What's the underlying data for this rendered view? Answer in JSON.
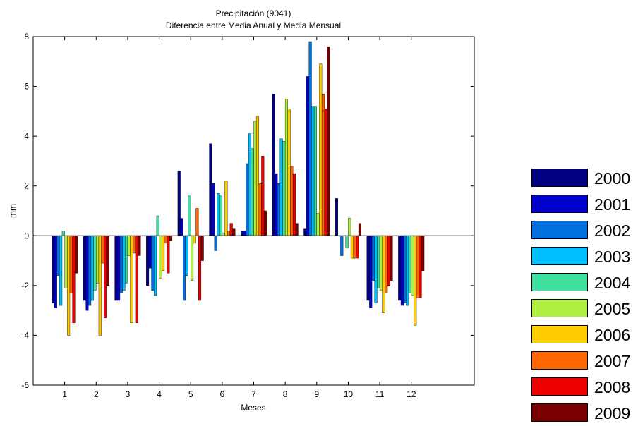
{
  "chart_data": {
    "type": "bar",
    "title": "Precipitación (9041)",
    "subtitle": "Diferencia entre Media Anual y Media Mensual",
    "xlabel": "Meses",
    "ylabel": "mm",
    "ylim": [
      -6,
      8
    ],
    "xlim": [
      0,
      14
    ],
    "yticks": [
      -6,
      -4,
      -2,
      0,
      2,
      4,
      6,
      8
    ],
    "categories": [
      "1",
      "2",
      "3",
      "4",
      "5",
      "6",
      "7",
      "8",
      "9",
      "10",
      "11",
      "12"
    ],
    "grid": false,
    "legend_position": "right",
    "series": [
      {
        "name": "2000",
        "color": "#000080",
        "values": [
          -2.7,
          -2.6,
          -2.6,
          -2.0,
          2.6,
          3.7,
          0.2,
          5.7,
          0.3,
          1.5,
          -2.6,
          -2.6
        ]
      },
      {
        "name": "2001",
        "color": "#0000cd",
        "values": [
          -2.9,
          -3.0,
          -2.6,
          -1.3,
          0.7,
          2.1,
          0.2,
          2.5,
          6.4,
          0.0,
          -2.9,
          -2.8
        ]
      },
      {
        "name": "2002",
        "color": "#0070e0",
        "values": [
          -1.6,
          -2.8,
          -2.3,
          -2.2,
          -2.6,
          -0.6,
          2.9,
          2.1,
          7.8,
          -0.8,
          -1.8,
          -2.7
        ]
      },
      {
        "name": "2003",
        "color": "#00bfff",
        "values": [
          -2.8,
          -2.6,
          -2.2,
          -2.4,
          -1.6,
          1.7,
          4.1,
          3.9,
          5.2,
          0.0,
          -2.7,
          -2.8
        ]
      },
      {
        "name": "2004",
        "color": "#40e0a0",
        "values": [
          0.2,
          -2.2,
          -1.9,
          0.8,
          1.6,
          1.6,
          3.5,
          3.8,
          5.2,
          -0.5,
          -2.1,
          -2.3
        ]
      },
      {
        "name": "2005",
        "color": "#b0f040",
        "values": [
          -2.1,
          -1.9,
          -0.8,
          -1.7,
          -1.8,
          0.1,
          4.6,
          5.5,
          0.9,
          0.7,
          -2.2,
          -2.4
        ]
      },
      {
        "name": "2006",
        "color": "#ffcc00",
        "values": [
          -4.0,
          -4.0,
          -3.5,
          -1.4,
          -0.3,
          2.2,
          4.8,
          5.1,
          6.9,
          -0.9,
          -3.1,
          -3.6
        ]
      },
      {
        "name": "2007",
        "color": "#ff6600",
        "values": [
          -2.3,
          -1.1,
          -0.7,
          -0.3,
          1.1,
          0.2,
          2.1,
          2.8,
          5.7,
          -0.9,
          -2.3,
          -2.5
        ]
      },
      {
        "name": "2008",
        "color": "#ee0000",
        "values": [
          -3.5,
          -3.3,
          -3.5,
          -1.5,
          -2.6,
          0.5,
          3.2,
          2.5,
          5.1,
          -0.9,
          -2.0,
          -2.5
        ]
      },
      {
        "name": "2009",
        "color": "#7a0000",
        "values": [
          -1.5,
          -2.0,
          -0.8,
          -0.2,
          -1.0,
          0.3,
          1.0,
          0.5,
          7.6,
          0.5,
          -1.8,
          -1.4
        ]
      }
    ]
  }
}
